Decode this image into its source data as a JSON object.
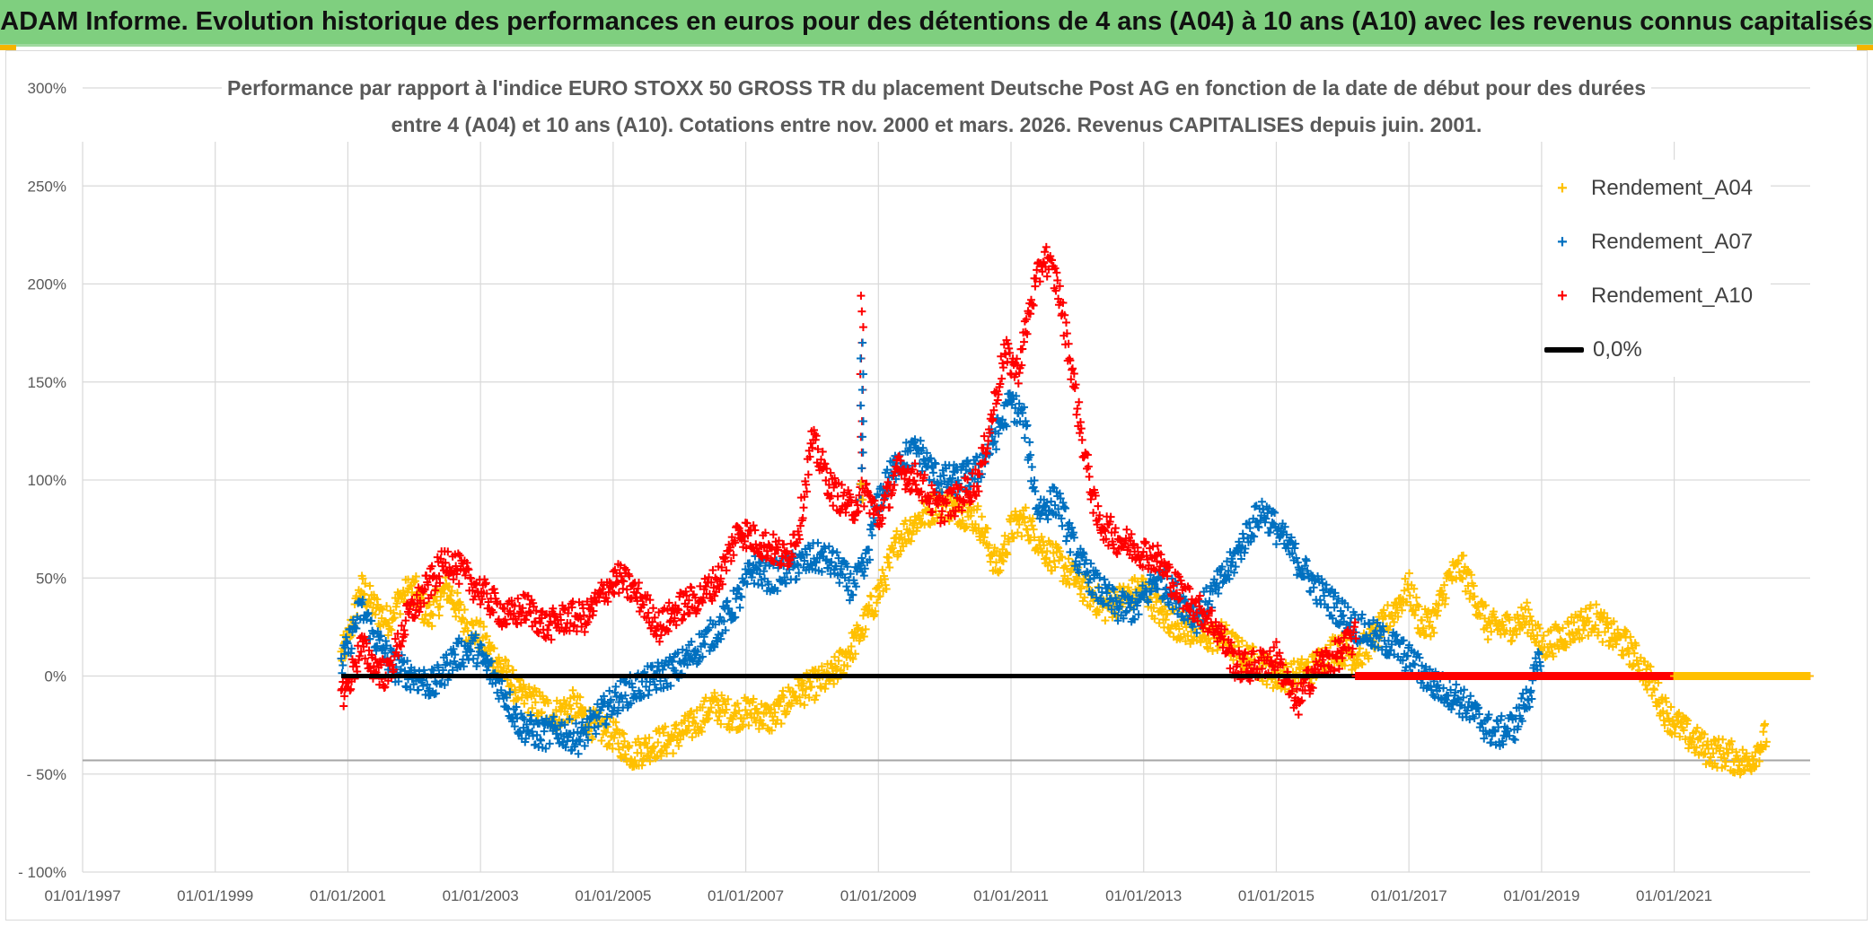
{
  "banner": {
    "title": "ADAM Informe. Evolution historique des performances en euros pour des détentions de 4 ans (A04) à 10 ans (A10) avec les revenus connus capitalisés"
  },
  "colors": {
    "banner_bg": "#7fcf7f",
    "A04": "#ffc000",
    "A07": "#0070c0",
    "A10": "#ff0000",
    "zero_line": "#000000",
    "grid": "#d9d9d9",
    "text": "#595959"
  },
  "chart_data": {
    "type": "scatter",
    "title_line1": "Performance par rapport à l'indice EURO STOXX 50 GROSS TR  du placement Deutsche Post AG en fonction de la date de début pour des durées",
    "title_line2": "entre 4 (A04) et 10 ans (A10). Cotations entre nov. 2000 et mars. 2026. Revenus CAPITALISES depuis juin. 2001.",
    "x_tick_labels": [
      "01/01/1997",
      "01/01/1999",
      "01/01/2001",
      "01/01/2003",
      "01/01/2005",
      "01/01/2007",
      "01/01/2009",
      "01/01/2011",
      "01/01/2013",
      "01/01/2015",
      "01/01/2017",
      "01/01/2019",
      "01/01/2021"
    ],
    "x_ticks_year": [
      1997,
      1999,
      2001,
      2003,
      2005,
      2007,
      2009,
      2011,
      2013,
      2015,
      2017,
      2019,
      2021
    ],
    "xlim": [
      1997,
      2023.05
    ],
    "ylim": [
      -100,
      300
    ],
    "y_tick_values": [
      -100,
      -50,
      0,
      50,
      100,
      150,
      200,
      250,
      300
    ],
    "y_tick_labels": [
      "- 100%",
      "- 50%",
      "0%",
      "50%",
      "100%",
      "150%",
      "200%",
      "250%",
      "300%"
    ],
    "reference_line": {
      "name": "0,0%",
      "value": 0,
      "from": 2000.9,
      "to": 2023.05
    },
    "series": [
      {
        "name": "Rendement_A04",
        "key": "A04",
        "x": [
          2000.9,
          2001.0,
          2001.2,
          2001.4,
          2001.6,
          2001.8,
          2002.0,
          2002.2,
          2002.5,
          2002.8,
          2003.0,
          2003.3,
          2003.6,
          2003.9,
          2004.1,
          2004.4,
          2004.7,
          2005.0,
          2005.3,
          2005.6,
          2005.9,
          2006.2,
          2006.5,
          2006.8,
          2007.1,
          2007.4,
          2007.7,
          2008.0,
          2008.3,
          2008.5,
          2008.7,
          2008.9,
          2009.1,
          2009.3,
          2009.6,
          2009.9,
          2010.2,
          2010.5,
          2010.8,
          2011.0,
          2011.2,
          2011.5,
          2011.8,
          2012.1,
          2012.4,
          2012.7,
          2013.0,
          2013.3,
          2013.6,
          2013.9,
          2014.2,
          2014.5,
          2014.8,
          2015.0,
          2015.3,
          2015.6,
          2015.9,
          2016.2,
          2016.5,
          2016.8,
          2017.0,
          2017.2,
          2017.4,
          2017.6,
          2017.8,
          2018.0,
          2018.2,
          2018.5,
          2018.8,
          2019.0,
          2019.3,
          2019.5,
          2019.8,
          2020.0,
          2020.3,
          2020.6,
          2020.9,
          2021.2,
          2021.5,
          2021.8,
          2022.1,
          2022.4
        ],
        "y": [
          10,
          18,
          45,
          35,
          28,
          40,
          45,
          30,
          45,
          25,
          20,
          5,
          -10,
          -15,
          -20,
          -15,
          -25,
          -30,
          -40,
          -35,
          -32,
          -25,
          -15,
          -20,
          -18,
          -22,
          -10,
          -5,
          0,
          10,
          20,
          35,
          50,
          70,
          80,
          88,
          85,
          80,
          55,
          75,
          80,
          65,
          55,
          45,
          35,
          40,
          45,
          30,
          25,
          20,
          20,
          10,
          5,
          0,
          0,
          5,
          15,
          10,
          20,
          35,
          45,
          25,
          30,
          50,
          55,
          40,
          25,
          25,
          30,
          15,
          20,
          25,
          30,
          22,
          15,
          0,
          -20,
          -30,
          -38,
          -40,
          -45,
          -30
        ]
      },
      {
        "name": "Rendement_A07",
        "key": "A07",
        "x": [
          2000.9,
          2001.0,
          2001.2,
          2001.4,
          2001.7,
          2002.0,
          2002.3,
          2002.6,
          2002.9,
          2003.1,
          2003.3,
          2003.6,
          2003.9,
          2004.2,
          2004.5,
          2004.8,
          2005.1,
          2005.4,
          2005.7,
          2006.0,
          2006.3,
          2006.6,
          2006.9,
          2007.1,
          2007.4,
          2007.7,
          2008.0,
          2008.2,
          2008.4,
          2008.6,
          2008.8,
          2009.0,
          2009.3,
          2009.6,
          2009.9,
          2010.2,
          2010.5,
          2010.8,
          2011.0,
          2011.2,
          2011.4,
          2011.7,
          2012.0,
          2012.3,
          2012.6,
          2012.9,
          2013.2,
          2013.5,
          2013.8,
          2014.1,
          2014.3,
          2014.6,
          2014.8,
          2015.0,
          2015.3,
          2015.6,
          2015.9,
          2016.2,
          2016.5,
          2016.8,
          2017.1,
          2017.4,
          2017.7,
          2018.0,
          2018.3,
          2018.6,
          2018.8,
          2019.0
        ],
        "y": [
          5,
          15,
          35,
          20,
          5,
          0,
          -5,
          10,
          15,
          5,
          -5,
          -25,
          -30,
          -28,
          -32,
          -20,
          -10,
          -5,
          0,
          5,
          15,
          25,
          40,
          55,
          50,
          55,
          60,
          60,
          55,
          45,
          55,
          90,
          110,
          115,
          100,
          100,
          105,
          125,
          140,
          130,
          85,
          90,
          60,
          45,
          35,
          35,
          50,
          40,
          30,
          45,
          55,
          75,
          85,
          75,
          60,
          45,
          35,
          25,
          20,
          15,
          5,
          -5,
          -10,
          -20,
          -30,
          -25,
          -10,
          10
        ]
      },
      {
        "name": "Rendement_A10",
        "key": "A10",
        "x": [
          2000.9,
          2001.0,
          2001.2,
          2001.4,
          2001.6,
          2001.9,
          2002.2,
          2002.5,
          2002.8,
          2003.1,
          2003.4,
          2003.7,
          2004.0,
          2004.3,
          2004.6,
          2004.9,
          2005.1,
          2005.4,
          2005.7,
          2006.0,
          2006.3,
          2006.6,
          2006.9,
          2007.1,
          2007.4,
          2007.6,
          2007.8,
          2008.0,
          2008.3,
          2008.6,
          2008.8,
          2009.0,
          2009.3,
          2009.6,
          2009.9,
          2010.2,
          2010.5,
          2010.7,
          2010.9,
          2011.1,
          2011.3,
          2011.5,
          2011.7,
          2011.9,
          2012.1,
          2012.3,
          2012.6,
          2012.9,
          2013.2,
          2013.5,
          2013.8,
          2014.1,
          2014.4,
          2014.7,
          2015.0,
          2015.3,
          2015.6,
          2015.9,
          2016.2
        ],
        "y": [
          -10,
          -5,
          15,
          5,
          0,
          30,
          45,
          60,
          50,
          40,
          30,
          35,
          25,
          30,
          30,
          45,
          50,
          40,
          25,
          35,
          40,
          50,
          75,
          70,
          65,
          60,
          75,
          120,
          95,
          85,
          95,
          80,
          105,
          100,
          85,
          90,
          100,
          130,
          165,
          155,
          190,
          215,
          200,
          160,
          115,
          80,
          70,
          65,
          60,
          45,
          35,
          25,
          5,
          5,
          10,
          -15,
          5,
          10,
          20
        ]
      }
    ],
    "flat_zero_segments": [
      {
        "series": "A07",
        "from": 2016.3,
        "to": 2018.7
      },
      {
        "series": "A10",
        "from": 2016.2,
        "to": 2023.05
      },
      {
        "series": "A04",
        "from": 2021.0,
        "to": 2023.05
      }
    ],
    "spikes": [
      {
        "series": "A10",
        "x": 2008.75,
        "y": 200
      },
      {
        "series": "A07",
        "x": 2008.75,
        "y": 170
      },
      {
        "series": "A04",
        "x": 2008.75,
        "y": 105
      }
    ]
  },
  "legend": {
    "items": [
      {
        "label": "Rendement_A04",
        "marker": "+",
        "key": "A04"
      },
      {
        "label": "Rendement_A07",
        "marker": "+",
        "key": "A07"
      },
      {
        "label": "Rendement_A10",
        "marker": "+",
        "key": "A10"
      },
      {
        "label": "0,0%",
        "marker": "line",
        "key": "zero_line"
      }
    ]
  }
}
